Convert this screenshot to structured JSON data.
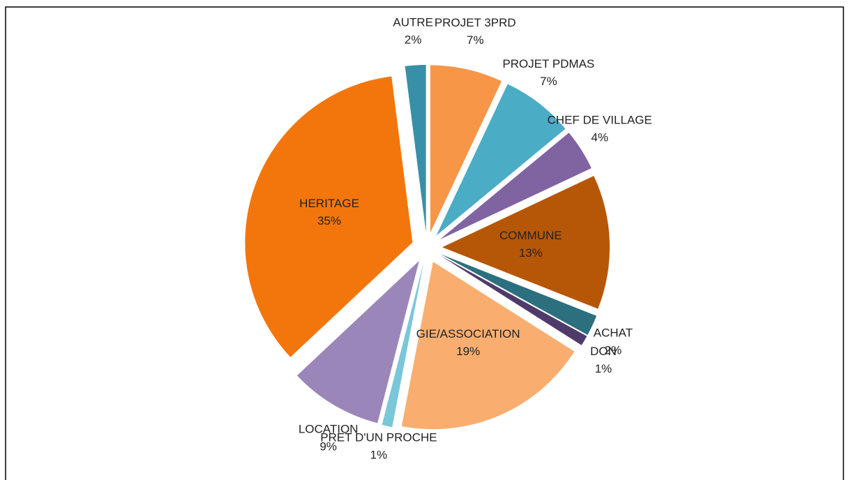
{
  "chart_data": {
    "type": "pie",
    "categories": [
      "PROJET 3PRD",
      "PROJET PDMAS",
      "CHEF DE VILLAGE",
      "COMMUNE",
      "ACHAT",
      "DON",
      "GIE/ASSOCIATION",
      "PRET D'UN PROCHE",
      "LOCATION",
      "HERITAGE",
      "AUTRE"
    ],
    "values": [
      7,
      7,
      4,
      13,
      2,
      1,
      19,
      1,
      9,
      35,
      2
    ],
    "value_labels": [
      "7%",
      "7%",
      "4%",
      "13%",
      "2%",
      "1%",
      "19%",
      "1%",
      "9%",
      "35%",
      "2%"
    ],
    "colors": [
      "#f79646",
      "#4bacc6",
      "#8064a2",
      "#b65708",
      "#2c6f7f",
      "#4f3b6b",
      "#f9ae6f",
      "#7ac7d9",
      "#9b86b9",
      "#f3760c",
      "#3790a8"
    ]
  }
}
